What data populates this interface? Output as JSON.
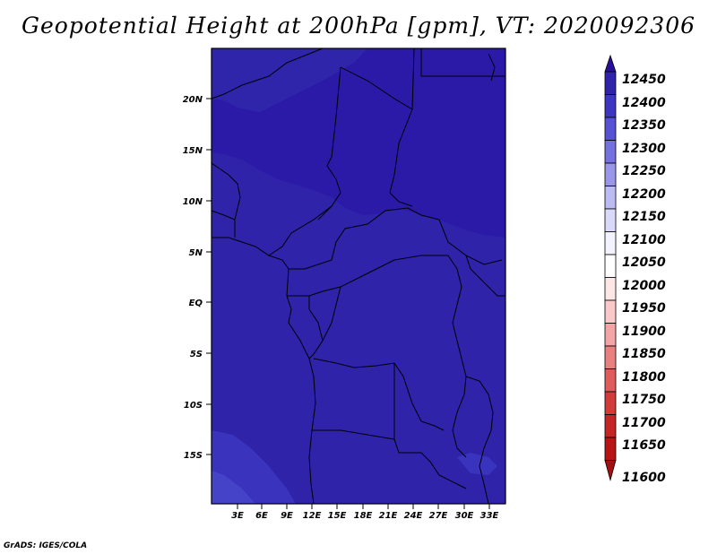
{
  "title": "Geopotential Height at 200hPa [gpm], VT: 2020092306",
  "footer": "GrADS: IGES/COLA",
  "map": {
    "lat_range": [
      -20,
      25
    ],
    "lon_range": [
      0,
      34
    ],
    "lat_ticks": [
      "20N",
      "15N",
      "10N",
      "5N",
      "EQ",
      "5S",
      "10S",
      "15S"
    ],
    "lon_ticks": [
      "3E",
      "6E",
      "9E",
      "12E",
      "15E",
      "18E",
      "21E",
      "24E",
      "27E",
      "30E",
      "33E"
    ],
    "field_colors": {
      "level_12400_12450": "#2b1aa7",
      "level_12350_12400": "#2e23a9",
      "level_12300_12350": "#3a33bd"
    }
  },
  "colorbar": {
    "levels": [
      "12450",
      "12400",
      "12350",
      "12300",
      "12250",
      "12200",
      "12150",
      "12100",
      "12050",
      "12000",
      "11950",
      "11900",
      "11850",
      "11800",
      "11750",
      "11700",
      "11650",
      "11600"
    ],
    "colors": [
      "#2a0f9a",
      "#2f23aa",
      "#3c37c0",
      "#5752d4",
      "#7571e0",
      "#9a97ea",
      "#bcbbf3",
      "#dad9fa",
      "#f3f3ff",
      "#ffffff",
      "#fde6e6",
      "#fbc9c9",
      "#f3a4a4",
      "#e98080",
      "#de5c5c",
      "#d33b3b",
      "#c52525",
      "#b81414",
      "#a50f0f"
    ]
  }
}
